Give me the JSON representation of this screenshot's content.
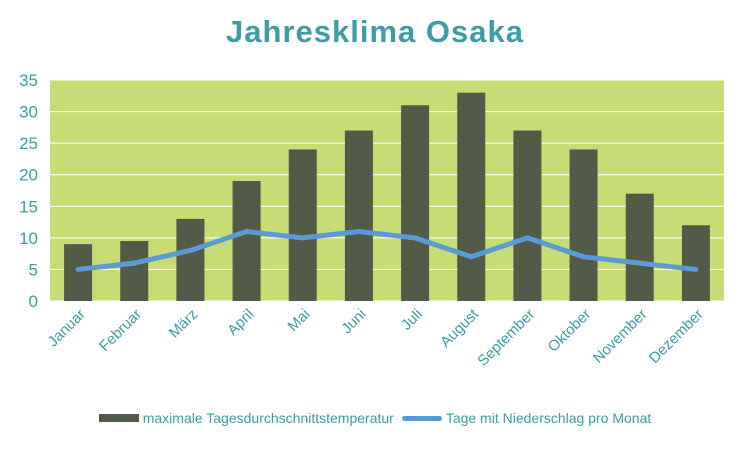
{
  "chart_data": {
    "type": "bar",
    "title": "Jahresklima  Osaka",
    "categories": [
      "Januar",
      "Februar",
      "März",
      "April",
      "Mai",
      "Juni",
      "Juli",
      "August",
      "September",
      "Oktober",
      "November",
      "Dezember"
    ],
    "series": [
      {
        "name": "maximale Tagesdurchschnittstemperatur",
        "type": "bar",
        "color": "#525A48",
        "values": [
          9,
          9.5,
          13,
          19,
          24,
          27,
          31,
          33,
          27,
          24,
          17,
          12
        ]
      },
      {
        "name": "Tage mit Niederschlag pro Monat",
        "type": "line",
        "color": "#5B9BD5",
        "values": [
          5,
          6,
          8,
          11,
          10,
          11,
          10,
          7,
          10,
          7,
          6,
          5
        ]
      }
    ],
    "ylim": [
      0,
      35
    ],
    "yticks": [
      0,
      5,
      10,
      15,
      20,
      25,
      30,
      35
    ],
    "grid": true,
    "plot_background": "#C6DC75",
    "gridline_color": "#FFFFFF",
    "text_color": "#3E9CA5",
    "legend_position": "bottom"
  }
}
